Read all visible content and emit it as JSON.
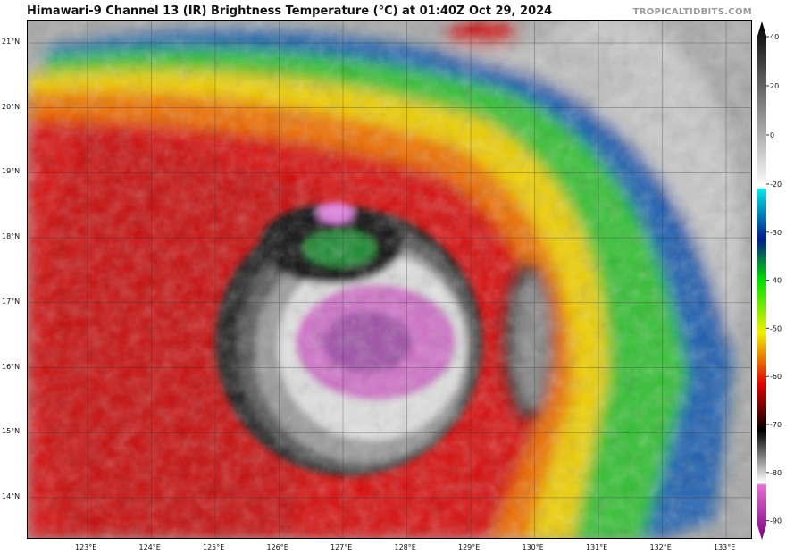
{
  "title": "Himawari-9 Channel 13 (IR) Brightness Temperature (°C) at 01:40Z Oct 29, 2024",
  "credit": "TROPICALTIDBITS.COM",
  "map": {
    "lon_ticks": [
      "123°E",
      "124°E",
      "125°E",
      "126°E",
      "127°E",
      "128°E",
      "129°E",
      "130°E",
      "131°E",
      "132°E",
      "133°E"
    ],
    "lat_ticks": [
      "21°N",
      "20°N",
      "19°N",
      "18°N",
      "17°N",
      "16°N",
      "15°N",
      "14°N"
    ],
    "grid": true
  },
  "colorbar": {
    "unit": "°C",
    "range": [
      -90,
      40
    ],
    "ticks": [
      "40",
      "20",
      "0",
      "-20",
      "-30",
      "-40",
      "-50",
      "-60",
      "-70",
      "-80",
      "-90"
    ],
    "colors": {
      "warm": "#000000",
      "cold_gray": "#ffffff",
      "cyan": "#00e5e5",
      "blue": "#001a8c",
      "green": "#00e000",
      "yellow": "#f0f000",
      "red": "#e00000",
      "black": "#000000",
      "magenta": "#e070d0",
      "purple": "#7a0080"
    }
  }
}
